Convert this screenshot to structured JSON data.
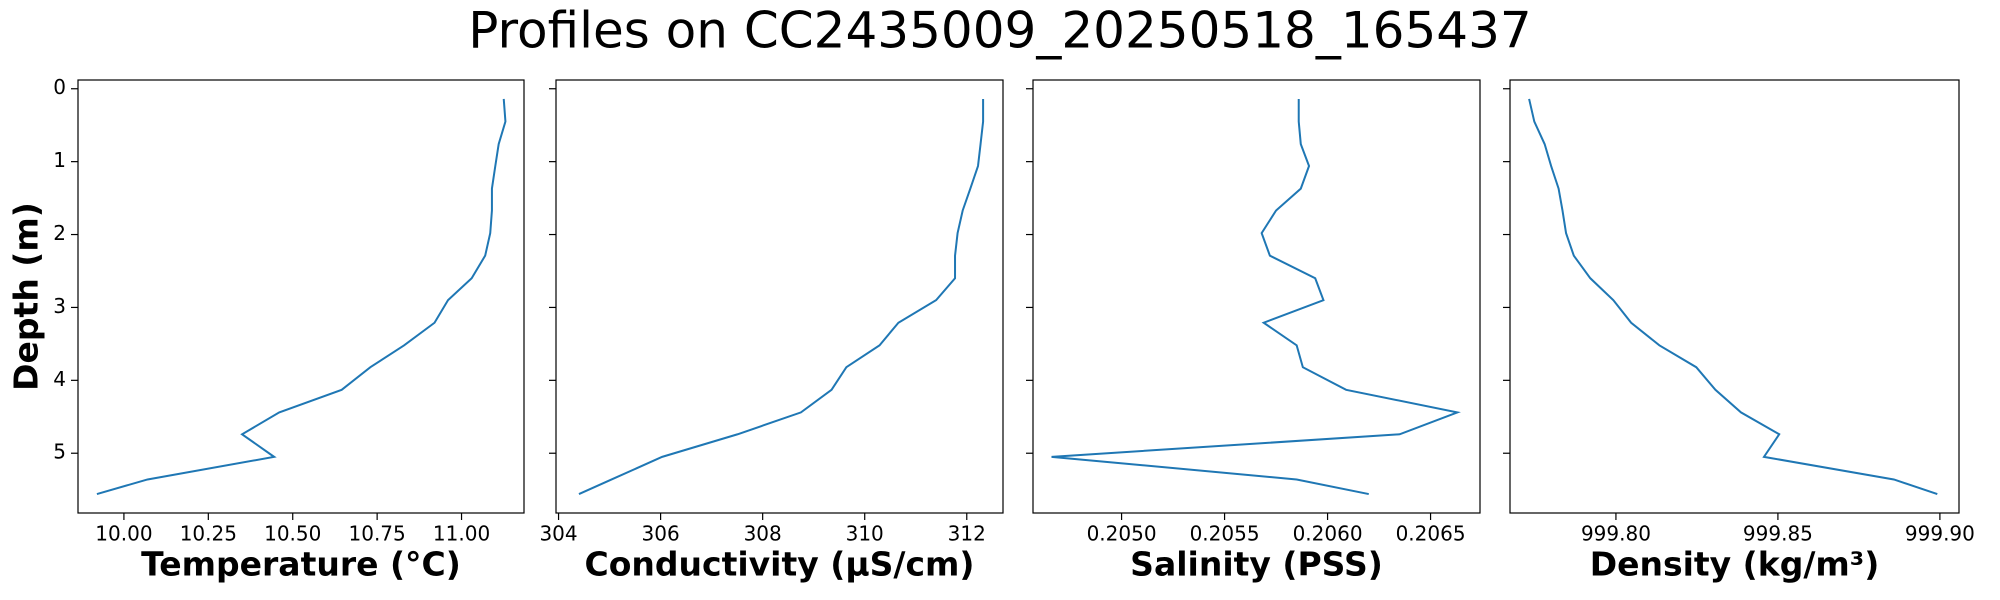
{
  "title": "Profiles on CC2435009_20250518_165437",
  "chart_data": [
    {
      "type": "line",
      "xlabel": "Temperature (°C)",
      "ylabel": "Depth (m)",
      "color": "#1f77b4",
      "depth": [
        0.14,
        0.45,
        0.76,
        1.06,
        1.37,
        1.67,
        1.98,
        2.29,
        2.6,
        2.9,
        3.21,
        3.52,
        3.82,
        4.13,
        4.44,
        4.74,
        5.05,
        5.36,
        5.56
      ],
      "values": [
        11.125,
        11.13,
        11.11,
        11.1,
        11.09,
        11.09,
        11.085,
        11.07,
        11.03,
        10.96,
        10.92,
        10.83,
        10.73,
        10.645,
        10.46,
        10.35,
        10.445,
        10.07,
        9.92
      ],
      "xlim": [
        9.864,
        11.185
      ],
      "xticks": [
        {
          "value": 10,
          "label": "10.00"
        },
        10.25,
        {
          "value": 10.5,
          "label": "10.50"
        },
        10.75,
        {
          "value": 11,
          "label": "11.00"
        }
      ],
      "ylim": [
        5.82,
        -0.12
      ],
      "yticks": [
        0,
        1,
        2,
        3,
        4,
        5
      ]
    },
    {
      "type": "line",
      "xlabel": "Conductivity (µS/cm)",
      "color": "#1f77b4",
      "depth": [
        0.14,
        0.45,
        0.76,
        1.06,
        1.37,
        1.67,
        1.98,
        2.29,
        2.6,
        2.9,
        3.21,
        3.52,
        3.82,
        4.13,
        4.44,
        4.74,
        5.05,
        5.36,
        5.56
      ],
      "values": [
        312.32,
        312.32,
        312.27,
        312.22,
        312.07,
        311.92,
        311.82,
        311.77,
        311.77,
        311.4,
        310.66,
        310.29,
        309.64,
        309.35,
        308.75,
        307.51,
        306.03,
        305.04,
        304.4
      ],
      "xlim": [
        303.95,
        312.71
      ],
      "xticks": [
        304,
        306,
        308,
        310,
        312
      ],
      "ylim": [
        5.82,
        -0.12
      ],
      "yticks": [
        0,
        1,
        2,
        3,
        4,
        5
      ]
    },
    {
      "type": "line",
      "xlabel": "Salinity (PSS)",
      "color": "#1f77b4",
      "depth": [
        0.14,
        0.45,
        0.76,
        1.06,
        1.37,
        1.67,
        1.98,
        2.29,
        2.6,
        2.9,
        3.21,
        3.52,
        3.82,
        4.13,
        4.44,
        4.74,
        5.05,
        5.36,
        5.56
      ],
      "values": [
        0.20586,
        0.20586,
        0.20587,
        0.20591,
        0.20587,
        0.20575,
        0.20568,
        0.20572,
        0.20594,
        0.20598,
        0.20569,
        0.20585,
        0.20588,
        0.20609,
        0.20663,
        0.20635,
        0.20466,
        0.20585,
        0.2062
      ],
      "xlim": [
        0.20457,
        0.20674
      ],
      "xticks": [
        {
          "value": 0.205,
          "label": "0.2050"
        },
        0.2055,
        {
          "value": 0.206,
          "label": "0.2060"
        },
        0.2065
      ],
      "ylim": [
        5.82,
        -0.12
      ],
      "yticks": [
        0,
        1,
        2,
        3,
        4,
        5
      ]
    },
    {
      "type": "line",
      "xlabel": "Density (kg/m³)",
      "color": "#1f77b4",
      "depth": [
        0.14,
        0.45,
        0.76,
        1.06,
        1.37,
        1.67,
        1.98,
        2.29,
        2.6,
        2.9,
        3.21,
        3.52,
        3.82,
        4.13,
        4.44,
        4.74,
        5.05,
        5.36,
        5.56
      ],
      "values": [
        999.7732,
        999.7748,
        999.778,
        999.78,
        999.7823,
        999.7835,
        999.7846,
        999.787,
        999.7921,
        999.7992,
        999.8047,
        999.8134,
        999.8248,
        999.8307,
        999.8386,
        999.8504,
        999.8457,
        999.8858,
        999.8992
      ],
      "xlim": [
        999.7673,
        999.9059
      ],
      "xticks": [
        {
          "value": 999.8,
          "label": "999.80"
        },
        999.85,
        {
          "value": 999.9,
          "label": "999.90"
        }
      ],
      "ylim": [
        5.82,
        -0.12
      ],
      "yticks": [
        0,
        1,
        2,
        3,
        4,
        5
      ]
    }
  ]
}
